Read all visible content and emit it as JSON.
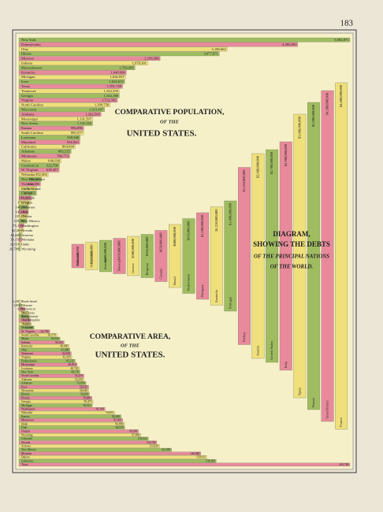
{
  "page_number": "183",
  "chart_data": [
    {
      "type": "bar",
      "orientation": "horizontal",
      "title": [
        "COMPARATIVE POPULATION,",
        "OF THE",
        "UNITED STATES."
      ],
      "colors": [
        "#9fbd60",
        "#e88a9b",
        "#efe07c"
      ],
      "categories": [
        "New York",
        "Pennsylvania",
        "Ohio",
        "Illinois",
        "Missouri",
        "Indiana",
        "Massachusetts",
        "Kentucky",
        "Michigan",
        "Iowa",
        "Texas",
        "Tennessee",
        "Georgia",
        "Virginia",
        "North Carolina",
        "Wisconsin",
        "Alabama",
        "Mississippi",
        "New Jersey",
        "Kansas",
        "South Carolina",
        "Louisiana",
        "Maryland",
        "California",
        "Arkansas",
        "Minnesota",
        "Maine",
        "Connecticut",
        "W. Virginia",
        "Nebraska",
        "New Hampshire",
        "Vermont",
        "Rhode Island",
        "Florida",
        "Colorado",
        "Oregon",
        "Delaware",
        "Utah",
        "Dakota",
        "New Mexico",
        "Washington",
        "Nevada",
        "Arizona",
        "Montana",
        "Idaho",
        "Wyoming"
      ],
      "values": [
        5082871,
        4282891,
        3198062,
        3077871,
        2168380,
        1978301,
        1783085,
        1648690,
        1636937,
        1624615,
        1591749,
        1542359,
        1542180,
        1512565,
        1399750,
        1315497,
        1262505,
        1131597,
        1131116,
        996096,
        995577,
        939946,
        934943,
        864694,
        802525,
        780773,
        648936,
        622700,
        618457,
        452402,
        346991,
        332286,
        276531,
        269493,
        194327,
        174768,
        146608,
        143963,
        135177,
        119565,
        75116,
        62266,
        40440,
        39159,
        32610,
        20789
      ],
      "value_labels": [
        "5,082,871",
        "4,282,891",
        "3,198,062",
        "3,077,871",
        "2,168,380",
        "1,978,301",
        "1,783,085",
        "1,648,690",
        "1,636,937",
        "1,624,615",
        "1,591,749",
        "1,542,359",
        "1,542,180",
        "1,512,565",
        "1,399,750",
        "1,315,497",
        "1,262,505",
        "1,131,597",
        "1,131,116",
        "996,096",
        "995,577",
        "939,946",
        "934,943",
        "864,694",
        "802,525",
        "780,773",
        "648,936",
        "622,700",
        "618,457",
        "452,402",
        "346,991",
        "332,286",
        "276,531",
        "269,493",
        "194,327",
        "174,768",
        "146,608",
        "143,963",
        "135,177",
        "119,565",
        "75,116",
        "62,266",
        "40,440",
        "39,159",
        "32,610",
        "20,789"
      ]
    },
    {
      "type": "bar",
      "orientation": "horizontal",
      "title": [
        "COMPARATIVE AREA,",
        "OF THE",
        "UNITED STATES."
      ],
      "colors": [
        "#efe07c",
        "#9fbd60",
        "#e88a9b"
      ],
      "categories": [
        "Rhode Island",
        "Delaware",
        "Connecticut",
        "New Jersey",
        "Massachusetts",
        "New Hampshire",
        "Vermont",
        "Maryland",
        "W. Virginia",
        "South Carolina",
        "Maine",
        "Indiana",
        "Kentucky",
        "Ohio",
        "Tennessee",
        "Virginia",
        "Pennsylvania",
        "Mississippi",
        "Louisiana",
        "New York",
        "North Carolina",
        "Alabama",
        "Arkansas",
        "Iowa",
        "Wisconsin",
        "Illinois",
        "Florida",
        "Georgia",
        "Michigan",
        "Washington",
        "Nebraska",
        "Kansas",
        "Minnesota",
        "Idaho",
        "Utah",
        "Oregon",
        "Wyoming",
        "Colorado",
        "Nevada",
        "Arizona",
        "New Mexico",
        "Montana",
        "Dakota",
        "California",
        "Texas"
      ],
      "values": [
        1250,
        2050,
        4990,
        7815,
        8315,
        9305,
        9565,
        12210,
        24780,
        30570,
        33040,
        36350,
        40400,
        41060,
        42050,
        42450,
        45215,
        46810,
        48720,
        49170,
        52250,
        52250,
        53850,
        56025,
        56040,
        56650,
        58680,
        59475,
        58915,
        69180,
        76855,
        82080,
        83365,
        84800,
        84970,
        96030,
        97890,
        103925,
        110700,
        113020,
        122580,
        146080,
        150932,
        158360,
        265780
      ],
      "value_labels": [
        "1,250",
        "2,050",
        "4,990",
        "7,815",
        "8,315",
        "9,305",
        "9,565",
        "12,210",
        "24,780",
        "30,570",
        "33,040",
        "36,350",
        "40,400",
        "41,060",
        "42,050",
        "42,450",
        "45,215",
        "46,810",
        "48,720",
        "49,170",
        "52,250",
        "52,250",
        "53,850",
        "56,025",
        "56,040",
        "56,650",
        "58,680",
        "59,475",
        "58,915",
        "69,180",
        "76,855",
        "82,080",
        "83,365",
        "84,800",
        "84,970",
        "96,030",
        "97,890",
        "103,925",
        "110,700",
        "113,020",
        "122,580",
        "146,080",
        "150,932",
        "158,360",
        "265,780"
      ]
    },
    {
      "type": "bar",
      "orientation": "vertical",
      "title": [
        "DIAGRAM,",
        "SHOWING THE DEBTS",
        "OF THE PRINCIPAL NATIONS",
        "OF THE WORLD."
      ],
      "colors": [
        "#e88a9b",
        "#efe07c",
        "#9fbd60"
      ],
      "categories": [
        "Denmark",
        "Switzerland",
        "Sweden",
        "Norway",
        "Greece",
        "Belgium",
        "Canada",
        "Brazil",
        "Netherlands",
        "Hungary",
        "Australia",
        "Portugal",
        "Turkey",
        "Austria",
        "United States",
        "Italy",
        "Spain",
        "Russia",
        "Great Britain",
        "France"
      ],
      "values": [
        300000000,
        350000000,
        400000000,
        450000000,
        500000000,
        550000000,
        650000000,
        800000000,
        950000000,
        1100000000,
        1250000000,
        1400000000,
        2250000000,
        2600000000,
        2700000000,
        2900000000,
        3600000000,
        3900000000,
        4200000000,
        4400000000
      ],
      "value_labels": [
        "$300,000,000",
        "$350,000,000",
        "$400,000,000",
        "$450,000,000",
        "$500,000,000",
        "$550,000,000",
        "$650,000,000",
        "$800,000,000",
        "$950,000,000",
        "$1,100,000,000",
        "$1,250,000,000",
        "$1,400,000,000",
        "$2,250,000,000",
        "$2,600,000,000",
        "$2,700,000,000",
        "$2,900,000,000",
        "$3,600,000,000",
        "$3,900,000,000",
        "$4,200,000,000",
        "$4,400,000,000"
      ]
    }
  ]
}
